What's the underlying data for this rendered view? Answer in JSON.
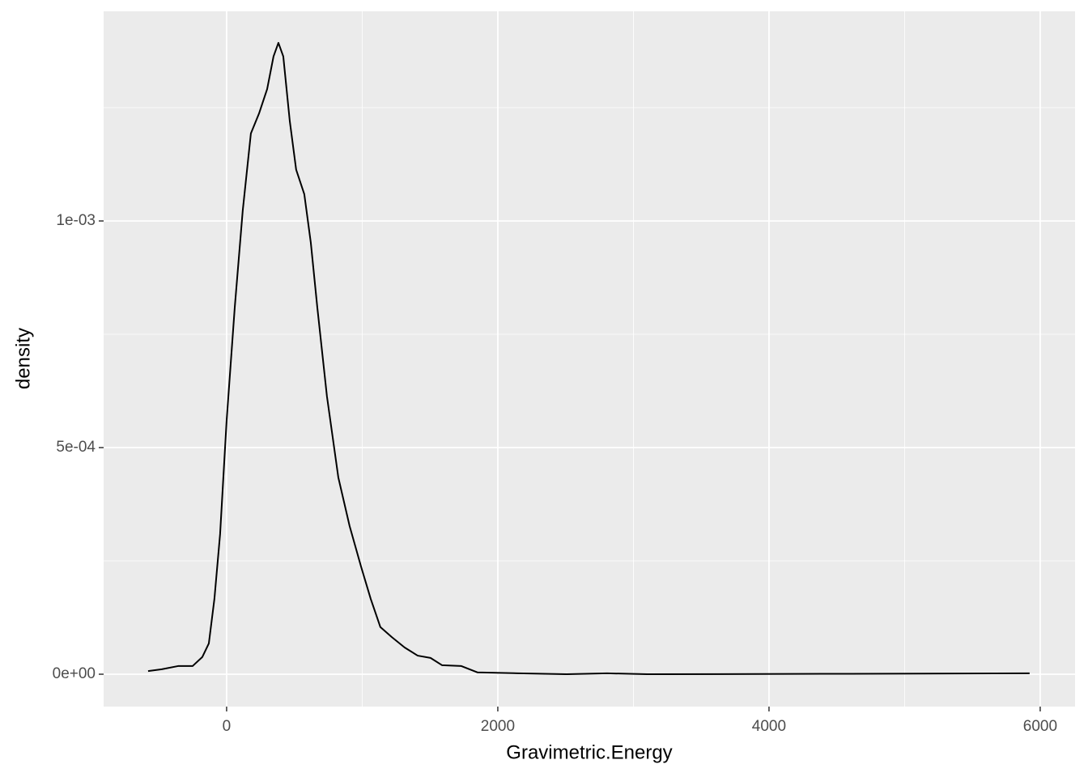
{
  "chart_data": {
    "type": "line",
    "x_label": "Gravimetric.Energy",
    "y_label": "density",
    "x": [
      -579,
      -478,
      -358,
      -251,
      -179,
      -131,
      -90,
      -48,
      0,
      60,
      119,
      179,
      239,
      299,
      346,
      382,
      418,
      466,
      513,
      573,
      621,
      669,
      740,
      824,
      907,
      991,
      1063,
      1134,
      1218,
      1313,
      1409,
      1504,
      1588,
      1731,
      1851,
      2149,
      2507,
      2806,
      3104,
      4597,
      5922
    ],
    "series": [
      {
        "color": "#000000",
        "values": [
          7e-06,
          1.1e-05,
          1.8e-05,
          1.8e-05,
          3.8e-05,
          6.8e-05,
          0.000166,
          0.000309,
          0.000559,
          0.000809,
          0.001023,
          0.001193,
          0.001237,
          0.001291,
          0.001363,
          0.001393,
          0.001363,
          0.00122,
          0.001113,
          0.001059,
          0.000952,
          0.000809,
          0.000613,
          0.000434,
          0.000327,
          0.000238,
          0.000166,
          0.000104,
          8.2e-05,
          5.9e-05,
          4.1e-05,
          3.6e-05,
          2e-05,
          1.8e-05,
          4e-06,
          2e-06,
          0,
          2e-06,
          0,
          1e-06,
          2e-06
        ]
      }
    ],
    "xlim": [
      -907,
      6257
    ],
    "ylim": [
      -7.14e-05,
      0.0014625
    ],
    "xticks": [
      0,
      2000,
      4000,
      6000
    ],
    "yticks": [
      {
        "value": 0,
        "label": "0e+00"
      },
      {
        "value": 0.0005,
        "label": "5e-04"
      },
      {
        "value": 0.001,
        "label": "1e-03"
      }
    ],
    "x_minor_grid": [
      1000,
      3000,
      5000
    ],
    "y_minor_grid": [
      0.00025,
      0.00075,
      0.00125
    ],
    "grid": true
  }
}
